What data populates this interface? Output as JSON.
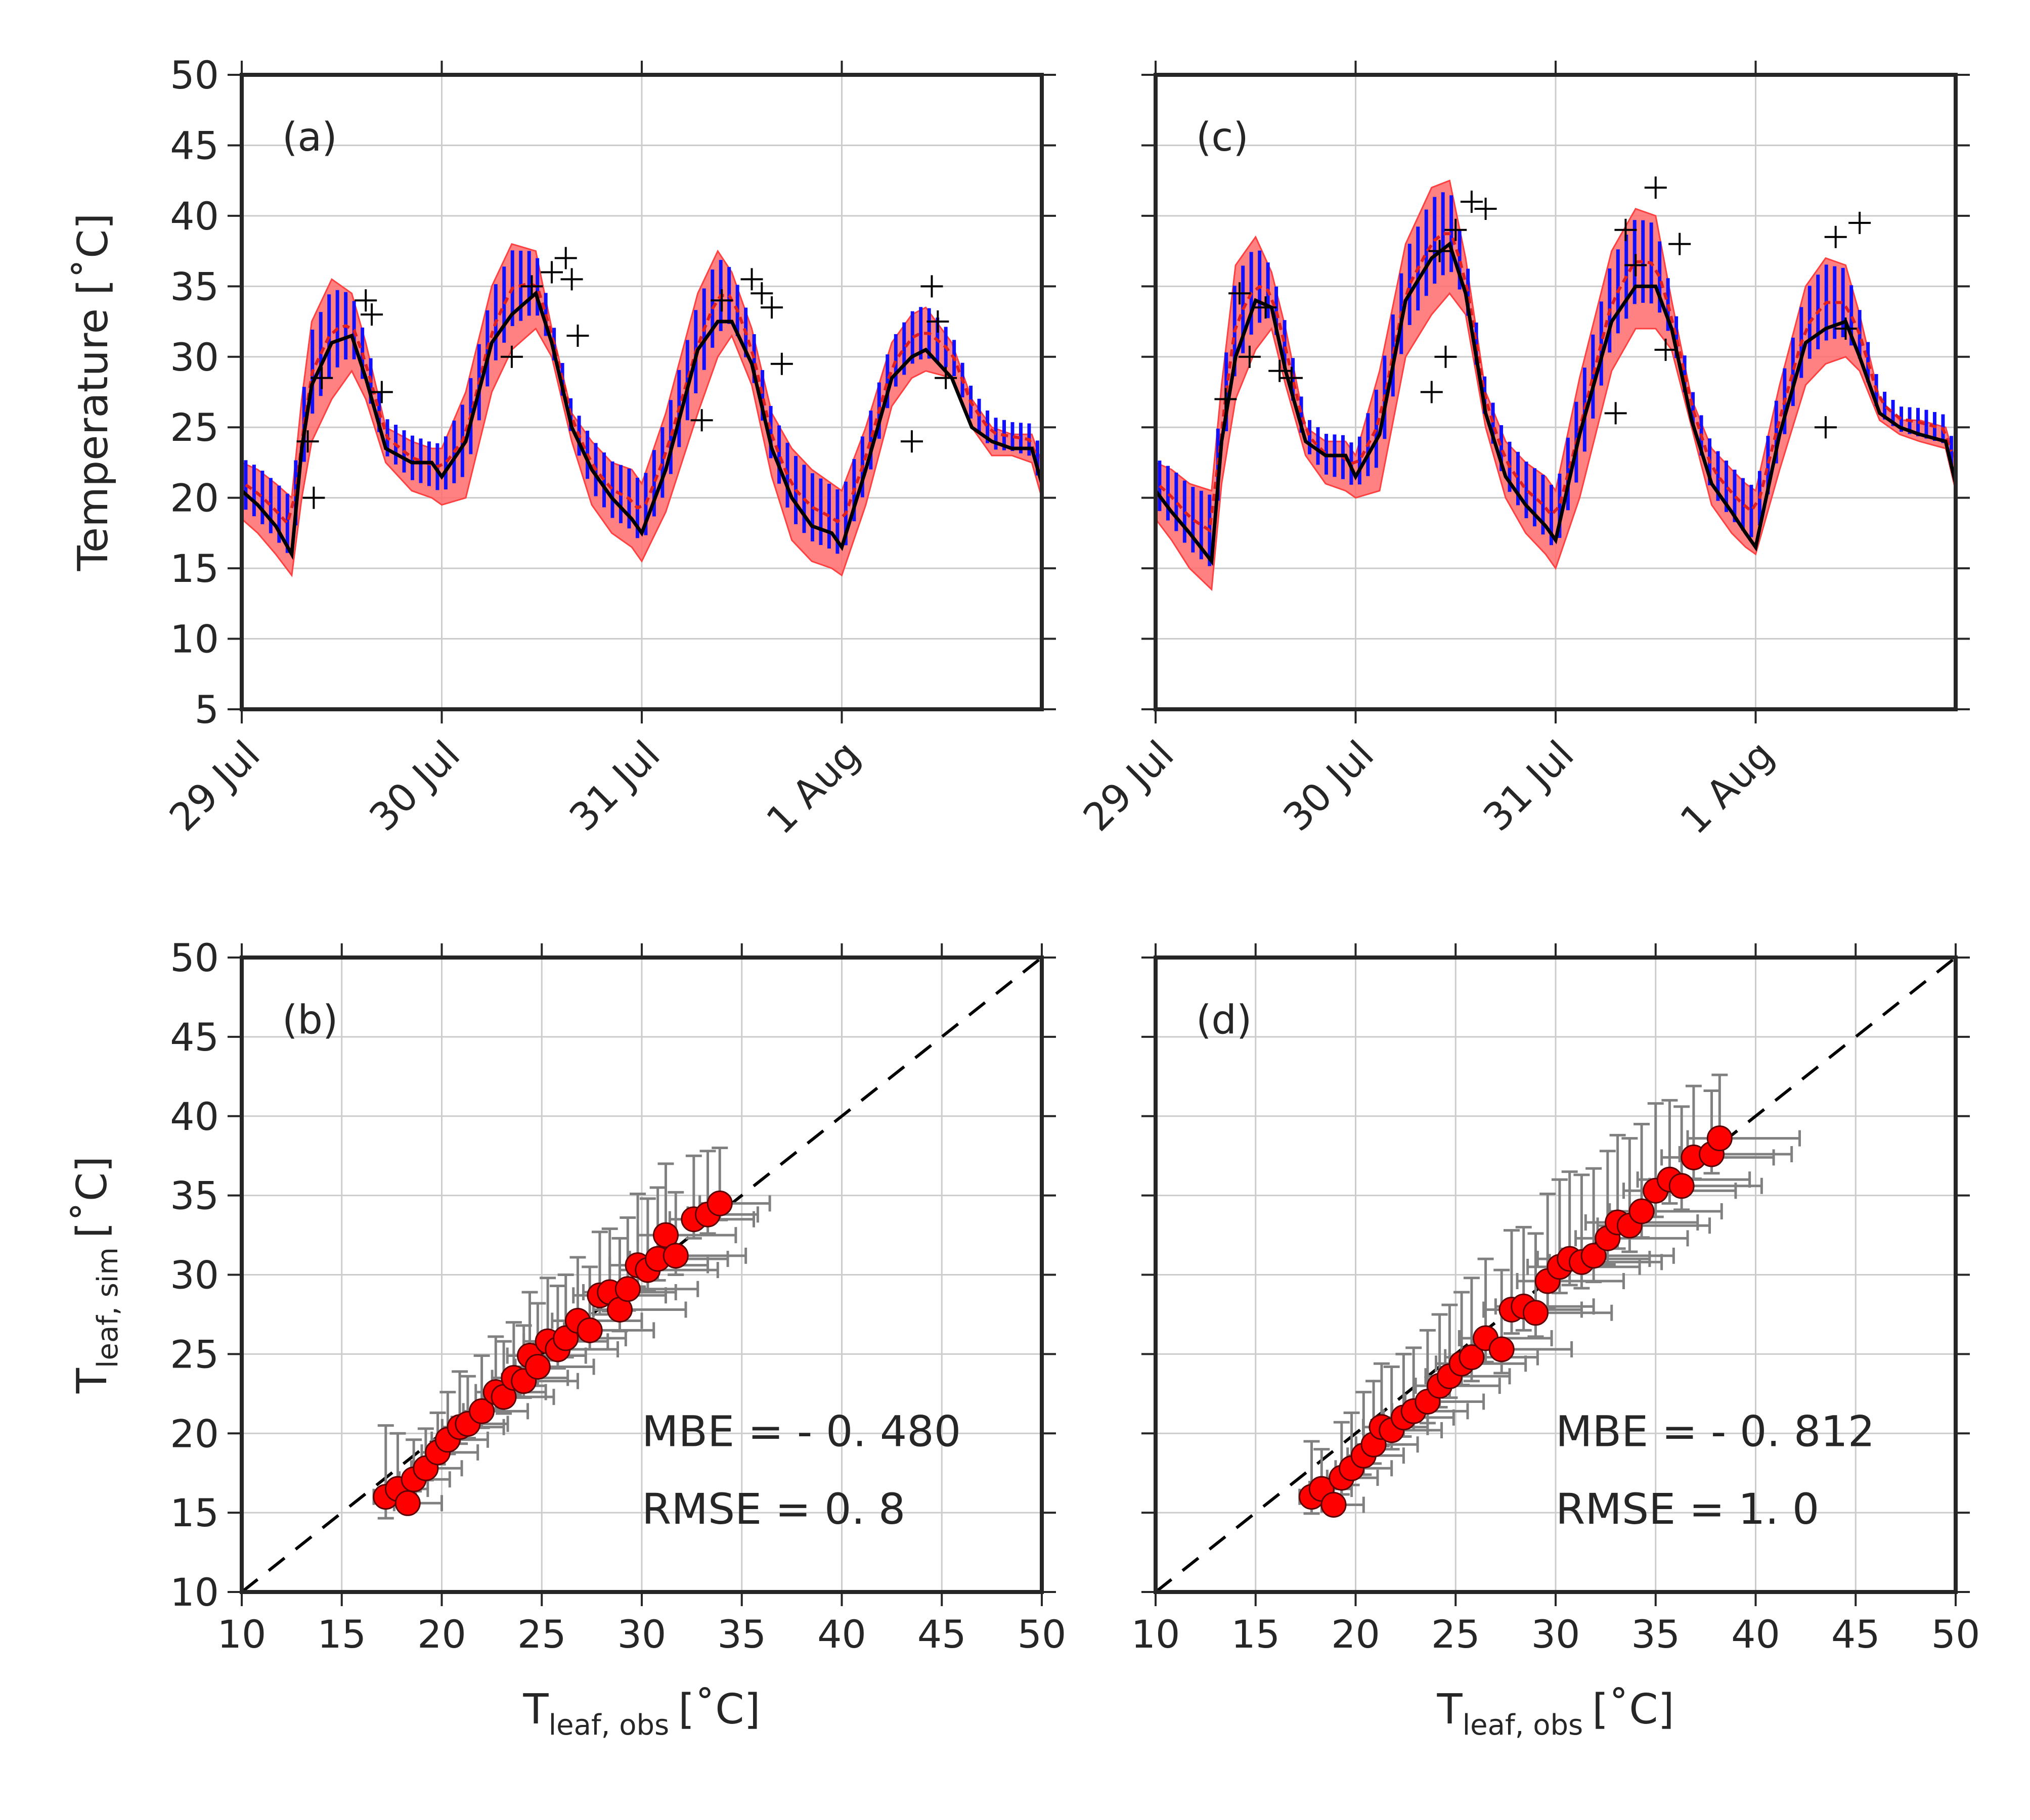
{
  "colors": {
    "observed_marker": "#000000",
    "model_band": "#ff6b6b",
    "model_mean": "#e02020",
    "model_errorbar": "#1010ff",
    "sim_line": "#000000",
    "scatter_fill": "#ff0000",
    "scatter_edge": "#5a0000",
    "scatter_errorbar": "#808080",
    "grid": "#cccccc"
  },
  "chart_data": [
    {
      "id": "a",
      "panel_label": "(a)",
      "type": "line",
      "ylabel": "Temperature [˚C]",
      "ylim": [
        5,
        50
      ],
      "yticks": [
        5,
        10,
        15,
        20,
        25,
        30,
        35,
        40,
        45,
        50
      ],
      "x_ticklabels": [
        "29 Jul",
        "30 Jul",
        "31 Jul",
        "1 Aug"
      ],
      "x_ticks_at_day": [
        0,
        1,
        2,
        3
      ],
      "xlim_days": [
        0,
        4
      ],
      "x_units": "days since 29 Jul 00:00",
      "grid": true,
      "series": {
        "band": {
          "day": [
            0,
            0.08,
            0.17,
            0.25,
            0.3,
            0.35,
            0.45,
            0.55,
            0.62,
            0.72,
            0.85,
            0.95,
            1.0,
            1.12,
            1.25,
            1.35,
            1.47,
            1.55,
            1.65,
            1.75,
            1.85,
            1.95,
            2.0,
            2.12,
            2.28,
            2.38,
            2.45,
            2.55,
            2.65,
            2.75,
            2.85,
            2.95,
            3.0,
            3.12,
            3.25,
            3.35,
            3.42,
            3.55,
            3.65,
            3.75,
            3.85,
            3.95,
            4.0
          ],
          "upper": [
            22.5,
            22.0,
            21.0,
            20.0,
            27.0,
            32.5,
            35.5,
            34.5,
            31.0,
            25.0,
            24.0,
            23.5,
            23.5,
            27.5,
            35.0,
            38.0,
            37.5,
            32.0,
            26.0,
            24.0,
            22.5,
            22.0,
            21.0,
            26.0,
            34.5,
            37.5,
            36.0,
            32.0,
            26.0,
            23.5,
            22.0,
            21.0,
            20.5,
            25.0,
            31.0,
            33.0,
            33.5,
            31.0,
            27.0,
            25.0,
            24.5,
            24.5,
            22.5
          ],
          "lower": [
            18.5,
            17.5,
            16.0,
            14.5,
            20.0,
            24.0,
            27.0,
            29.0,
            27.0,
            22.5,
            20.5,
            20.0,
            19.5,
            20.0,
            27.5,
            30.5,
            32.0,
            30.0,
            24.0,
            19.5,
            17.5,
            16.5,
            15.5,
            19.0,
            26.0,
            30.0,
            31.5,
            28.0,
            21.5,
            17.0,
            15.5,
            15.0,
            14.5,
            19.5,
            26.5,
            28.5,
            29.0,
            28.5,
            25.0,
            23.0,
            23.0,
            22.5,
            20.0
          ]
        },
        "sim_line": {
          "day": [
            0,
            0.08,
            0.17,
            0.25,
            0.3,
            0.35,
            0.45,
            0.55,
            0.62,
            0.72,
            0.85,
            0.95,
            1.0,
            1.12,
            1.25,
            1.35,
            1.47,
            1.55,
            1.65,
            1.75,
            1.85,
            1.95,
            2.0,
            2.12,
            2.28,
            2.38,
            2.45,
            2.55,
            2.65,
            2.75,
            2.85,
            2.95,
            3.0,
            3.12,
            3.25,
            3.35,
            3.42,
            3.55,
            3.65,
            3.75,
            3.85,
            3.95,
            4.0
          ],
          "y": [
            20.5,
            19.5,
            18.0,
            16.0,
            23.5,
            28.0,
            31.0,
            31.5,
            28.5,
            23.5,
            22.5,
            22.5,
            21.5,
            24.0,
            31.0,
            33.0,
            34.5,
            31.0,
            25.0,
            22.0,
            20.0,
            18.5,
            17.5,
            22.0,
            30.5,
            32.5,
            32.5,
            29.5,
            23.5,
            20.0,
            18.0,
            17.5,
            16.5,
            22.0,
            28.5,
            30.0,
            30.5,
            28.5,
            25.0,
            24.0,
            23.5,
            23.5,
            21.0
          ]
        },
        "observed_cross": {
          "day": [
            0.33,
            0.36,
            0.4,
            0.62,
            0.65,
            0.7,
            1.35,
            1.45,
            1.55,
            1.62,
            1.65,
            1.68,
            2.3,
            2.4,
            2.55,
            2.6,
            2.65,
            2.7,
            3.35,
            3.45,
            3.48,
            3.52
          ],
          "y": [
            24.0,
            20.0,
            28.5,
            34.0,
            33.0,
            27.5,
            30.0,
            35.0,
            36.0,
            37.0,
            35.5,
            31.5,
            25.5,
            34.0,
            35.5,
            34.5,
            33.5,
            29.5,
            24.0,
            35.0,
            32.5,
            28.5
          ]
        }
      }
    },
    {
      "id": "c",
      "panel_label": "(c)",
      "type": "line",
      "ylim": [
        5,
        50
      ],
      "yticks": [
        5,
        10,
        15,
        20,
        25,
        30,
        35,
        40,
        45,
        50
      ],
      "x_ticklabels": [
        "29 Jul",
        "30 Jul",
        "31 Jul",
        "1 Aug"
      ],
      "x_ticks_at_day": [
        0,
        1,
        2,
        3
      ],
      "xlim_days": [
        0,
        4
      ],
      "x_units": "days since 29 Jul 00:00",
      "grid": true,
      "series": {
        "band": {
          "day": [
            0,
            0.08,
            0.17,
            0.28,
            0.33,
            0.4,
            0.5,
            0.58,
            0.65,
            0.75,
            0.85,
            0.95,
            1.0,
            1.12,
            1.25,
            1.38,
            1.47,
            1.55,
            1.65,
            1.75,
            1.85,
            1.95,
            2.0,
            2.12,
            2.28,
            2.4,
            2.5,
            2.58,
            2.68,
            2.78,
            2.88,
            2.95,
            3.0,
            3.12,
            3.25,
            3.35,
            3.45,
            3.52,
            3.62,
            3.72,
            3.82,
            3.95,
            4.0
          ],
          "upper": [
            22.5,
            22.0,
            21.0,
            20.5,
            28.0,
            36.5,
            38.5,
            36.0,
            32.0,
            25.0,
            24.0,
            24.0,
            23.0,
            29.0,
            38.0,
            42.0,
            42.5,
            37.0,
            27.5,
            24.0,
            22.5,
            21.5,
            20.5,
            28.5,
            37.5,
            40.5,
            40.0,
            34.0,
            27.0,
            23.5,
            22.0,
            21.0,
            20.5,
            28.0,
            35.0,
            37.0,
            36.5,
            33.0,
            27.0,
            25.5,
            25.5,
            25.0,
            22.5
          ],
          "lower": [
            18.5,
            17.0,
            15.0,
            13.5,
            21.0,
            27.0,
            30.5,
            32.0,
            28.0,
            23.0,
            21.0,
            20.5,
            20.0,
            20.5,
            30.0,
            33.0,
            34.5,
            33.0,
            25.0,
            20.0,
            17.5,
            16.0,
            15.0,
            20.0,
            29.0,
            32.0,
            32.0,
            30.5,
            25.0,
            19.5,
            17.5,
            16.5,
            16.0,
            22.0,
            28.0,
            29.5,
            30.0,
            29.0,
            25.5,
            24.5,
            24.0,
            23.5,
            20.5
          ]
        },
        "sim_line": {
          "day": [
            0,
            0.08,
            0.17,
            0.28,
            0.33,
            0.4,
            0.5,
            0.58,
            0.65,
            0.75,
            0.85,
            0.95,
            1.0,
            1.12,
            1.25,
            1.38,
            1.47,
            1.55,
            1.65,
            1.75,
            1.85,
            1.95,
            2.0,
            2.12,
            2.28,
            2.4,
            2.5,
            2.58,
            2.68,
            2.78,
            2.88,
            2.95,
            3.0,
            3.12,
            3.25,
            3.35,
            3.45,
            3.52,
            3.62,
            3.72,
            3.82,
            3.95,
            4.0
          ],
          "y": [
            20.5,
            19.0,
            17.5,
            15.5,
            24.0,
            30.0,
            34.0,
            33.5,
            29.0,
            24.0,
            23.0,
            23.0,
            21.5,
            24.5,
            34.0,
            37.0,
            38.0,
            34.5,
            26.0,
            21.5,
            19.5,
            18.0,
            17.0,
            24.5,
            32.5,
            35.0,
            35.0,
            32.0,
            25.5,
            21.0,
            19.0,
            17.5,
            16.5,
            24.5,
            31.0,
            32.0,
            32.5,
            30.0,
            26.0,
            25.0,
            24.5,
            24.0,
            21.0
          ]
        },
        "observed_cross": {
          "day": [
            0.35,
            0.42,
            0.47,
            0.55,
            0.62,
            0.68,
            1.38,
            1.42,
            1.45,
            1.5,
            1.58,
            1.65,
            2.3,
            2.35,
            2.4,
            2.5,
            2.55,
            2.62,
            3.35,
            3.4,
            3.45,
            3.52
          ],
          "y": [
            27.0,
            34.5,
            30.0,
            33.5,
            29.0,
            28.5,
            27.5,
            37.5,
            30.0,
            39.0,
            41.0,
            40.5,
            26.0,
            39.0,
            36.5,
            42.0,
            30.5,
            38.0,
            25.0,
            38.5,
            32.0,
            39.5
          ]
        }
      }
    },
    {
      "id": "b",
      "panel_label": "(b)",
      "type": "scatter",
      "xlabel": "T",
      "xlabel_sub": "leaf, obs",
      "xlabel_unit": "[˚C]",
      "ylabel": "T",
      "ylabel_sub": "leaf, sim",
      "ylabel_unit": "[˚C]",
      "xlim": [
        10,
        50
      ],
      "ylim": [
        10,
        50
      ],
      "xticks": [
        10,
        15,
        20,
        25,
        30,
        35,
        40,
        45,
        50
      ],
      "yticks": [
        10,
        15,
        20,
        25,
        30,
        35,
        40,
        45,
        50
      ],
      "grid": true,
      "one_to_one_line": true,
      "stats": {
        "mbe": "MBE =  - 0. 480",
        "rmse": "RMSE = 0. 8"
      },
      "points": {
        "x": [
          17.2,
          17.8,
          18.3,
          18.6,
          19.2,
          19.8,
          20.3,
          20.9,
          21.3,
          22.0,
          22.7,
          23.1,
          23.6,
          24.1,
          24.4,
          24.8,
          25.3,
          25.8,
          26.2,
          26.8,
          27.4,
          27.9,
          28.4,
          28.9,
          29.3,
          29.8,
          30.3,
          30.8,
          31.2,
          31.7,
          32.6,
          33.3,
          33.9
        ],
        "y": [
          16.0,
          16.5,
          15.6,
          17.1,
          17.8,
          18.8,
          19.6,
          20.4,
          20.6,
          21.4,
          22.6,
          22.3,
          23.5,
          23.3,
          24.9,
          24.2,
          25.8,
          25.3,
          26.0,
          27.1,
          26.5,
          28.7,
          28.9,
          27.8,
          29.1,
          30.6,
          30.3,
          31.0,
          32.5,
          31.2,
          33.5,
          33.8,
          34.5
        ],
        "xerr": [
          1.5,
          1.5,
          1.7,
          1.8,
          1.8,
          2.0,
          2.0,
          2.2,
          2.0,
          2.3,
          2.5,
          2.5,
          2.7,
          2.7,
          2.8,
          2.8,
          3.0,
          3.0,
          3.0,
          3.2,
          3.2,
          3.3,
          3.3,
          3.3,
          3.5,
          3.5,
          3.5,
          3.5,
          3.5,
          3.5,
          3.0,
          2.5,
          2.5
        ],
        "yerr": [
          4.5,
          3.5,
          1.5,
          2.5,
          2.5,
          2.5,
          3.0,
          3.5,
          3.0,
          3.5,
          3.5,
          3.5,
          3.5,
          3.5,
          4.0,
          4.0,
          4.0,
          4.0,
          4.0,
          4.0,
          4.0,
          4.0,
          4.0,
          4.5,
          4.5,
          4.5,
          4.5,
          4.5,
          4.5,
          4.0,
          4.0,
          4.0,
          3.5
        ]
      }
    },
    {
      "id": "d",
      "panel_label": "(d)",
      "type": "scatter",
      "xlabel": "T",
      "xlabel_sub": "leaf, obs",
      "xlabel_unit": "[˚C]",
      "xlim": [
        10,
        50
      ],
      "ylim": [
        10,
        50
      ],
      "xticks": [
        10,
        15,
        20,
        25,
        30,
        35,
        40,
        45,
        50
      ],
      "yticks": [
        10,
        15,
        20,
        25,
        30,
        35,
        40,
        45,
        50
      ],
      "grid": true,
      "one_to_one_line": true,
      "stats": {
        "mbe": "MBE =  - 0. 812",
        "rmse": "RMSE = 1. 0"
      },
      "points": {
        "x": [
          17.8,
          18.3,
          18.9,
          19.3,
          19.8,
          20.4,
          20.9,
          21.3,
          21.8,
          22.4,
          22.9,
          23.6,
          24.2,
          24.7,
          25.3,
          25.8,
          26.5,
          27.3,
          27.8,
          28.4,
          29.0,
          29.6,
          30.2,
          30.7,
          31.3,
          31.9,
          32.6,
          33.1,
          33.7,
          34.3,
          35.0,
          35.7,
          36.3,
          36.9,
          37.8,
          38.2
        ],
        "y": [
          16.0,
          16.5,
          15.5,
          17.2,
          17.8,
          18.6,
          19.3,
          20.4,
          20.2,
          21.0,
          21.4,
          22.0,
          23.0,
          23.6,
          24.4,
          24.8,
          26.0,
          25.3,
          27.8,
          28.0,
          27.6,
          29.6,
          30.5,
          31.0,
          30.8,
          31.2,
          32.3,
          33.3,
          33.1,
          34.0,
          35.3,
          36.0,
          35.6,
          37.4,
          37.6,
          38.6
        ],
        "xerr": [
          1.5,
          1.5,
          1.5,
          1.8,
          2.0,
          2.0,
          2.2,
          2.3,
          2.5,
          2.5,
          2.7,
          2.8,
          3.0,
          3.0,
          3.2,
          3.3,
          3.3,
          3.5,
          3.5,
          3.5,
          3.8,
          3.8,
          4.0,
          4.0,
          4.0,
          4.0,
          4.0,
          4.0,
          4.0,
          4.0,
          4.0,
          4.0,
          4.0,
          4.0,
          4.0,
          4.0
        ],
        "yerr": [
          3.5,
          2.5,
          1.5,
          3.5,
          3.5,
          4.0,
          4.0,
          4.0,
          4.0,
          4.0,
          4.0,
          4.5,
          4.5,
          4.5,
          4.5,
          5.0,
          5.0,
          5.0,
          5.0,
          5.0,
          5.0,
          5.5,
          5.5,
          5.5,
          5.5,
          5.5,
          5.5,
          5.5,
          5.5,
          5.5,
          5.5,
          5.0,
          5.0,
          4.5,
          4.0,
          4.0
        ]
      }
    }
  ]
}
